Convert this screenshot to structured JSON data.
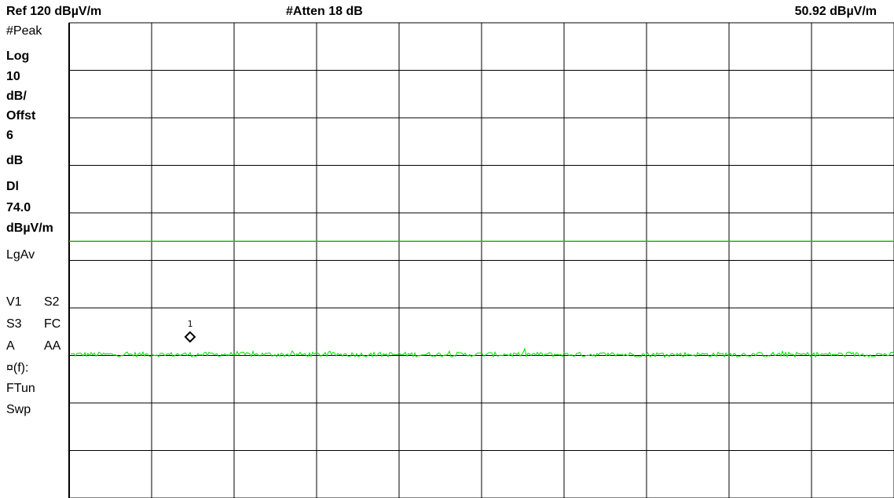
{
  "header": {
    "ref_label": "Ref 120 dBµV/m",
    "atten_label": "#Atten 18 dB",
    "marker_readout": "50.92 dBµV/m"
  },
  "side_panel": {
    "detector": "#Peak",
    "scale_type": "Log",
    "scale_value": "10",
    "scale_unit": "dB/",
    "offset_label": "Offst",
    "offset_value": "6",
    "offset_unit": "dB",
    "display_line_label": "Dl",
    "display_line_value": "74.0",
    "display_line_unit": "dBµV/m",
    "avg_mode": "LgAv",
    "row_v1": "V1",
    "row_s2": "S2",
    "row_s3": "S3",
    "row_fc": "FC",
    "row_a": "A",
    "row_aa": "AA",
    "row_ft": "¤(f):",
    "row_ftun": "FTun",
    "row_swp": "Swp"
  },
  "marker": {
    "label": "1"
  },
  "colors": {
    "trace": "#00e000",
    "display_line": "#00c800",
    "grid": "#000000",
    "background": "#ffffff"
  },
  "chart_data": {
    "type": "line",
    "reference_level_dBuV_per_m": 120,
    "scale_dB_per_div": 10,
    "divisions_y": 10,
    "divisions_x": 10,
    "ylim": [
      20,
      120
    ],
    "display_line_dBuV_per_m": 74.0,
    "trace_noise_floor_dBuV_per_m": 50.2,
    "marker_1": {
      "value_dBuV_per_m": 50.92,
      "x_fraction": 0.1466
    },
    "grid": true
  }
}
